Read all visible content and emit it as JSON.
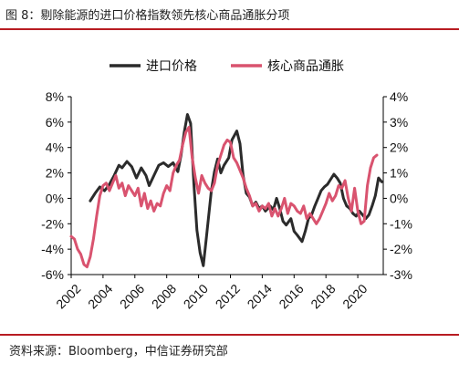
{
  "title": "图 8：剔除能源的进口价格指数领先核心商品通胀分项",
  "source": "资料来源：Bloomberg，中信证券研究部",
  "colors": {
    "import": "#2b2b2b",
    "core": "#d9536f",
    "rule": "#b81c22"
  },
  "chart_data": {
    "type": "line",
    "legend_position": "top",
    "grid": false,
    "xlim": [
      2002,
      2021.6
    ],
    "x_ticks": [
      2002,
      2004,
      2006,
      2008,
      2010,
      2012,
      2014,
      2016,
      2018,
      2020
    ],
    "x_tick_labels": [
      "2002",
      "2004",
      "2006",
      "2008",
      "2010",
      "2012",
      "2014",
      "2016",
      "2018",
      "2020"
    ],
    "y_left": {
      "range": [
        -6,
        8
      ],
      "ticks": [
        -6,
        -4,
        -2,
        0,
        2,
        4,
        6,
        8
      ],
      "tick_labels": [
        "-6%",
        "-4%",
        "-2%",
        "0%",
        "2%",
        "4%",
        "6%",
        "8%"
      ]
    },
    "y_right": {
      "range": [
        -3,
        4
      ],
      "ticks": [
        -3,
        -2,
        -1,
        0,
        1,
        2,
        3,
        4
      ],
      "tick_labels": [
        "-3%",
        "-2%",
        "-1%",
        "0%",
        "1%",
        "2%",
        "3%",
        "4%"
      ]
    },
    "series": [
      {
        "name": "进口价格",
        "axis": "left",
        "points": [
          [
            2003.2,
            -0.2
          ],
          [
            2003.5,
            0.4
          ],
          [
            2003.8,
            0.9
          ],
          [
            2004.1,
            0.6
          ],
          [
            2004.4,
            1.1
          ],
          [
            2004.7,
            1.8
          ],
          [
            2005.0,
            2.6
          ],
          [
            2005.2,
            2.4
          ],
          [
            2005.5,
            2.9
          ],
          [
            2005.8,
            2.5
          ],
          [
            2006.1,
            1.6
          ],
          [
            2006.4,
            2.4
          ],
          [
            2006.7,
            1.8
          ],
          [
            2006.9,
            1.0
          ],
          [
            2007.2,
            1.8
          ],
          [
            2007.5,
            2.6
          ],
          [
            2007.8,
            2.8
          ],
          [
            2008.1,
            2.5
          ],
          [
            2008.4,
            2.8
          ],
          [
            2008.7,
            2.1
          ],
          [
            2008.9,
            3.4
          ],
          [
            2009.1,
            5.2
          ],
          [
            2009.3,
            6.6
          ],
          [
            2009.5,
            5.9
          ],
          [
            2009.7,
            1.2
          ],
          [
            2009.9,
            -2.5
          ],
          [
            2010.1,
            -4.3
          ],
          [
            2010.3,
            -5.3
          ],
          [
            2010.5,
            -3.0
          ],
          [
            2010.8,
            0.6
          ],
          [
            2011.0,
            2.1
          ],
          [
            2011.2,
            3.1
          ],
          [
            2011.4,
            2.0
          ],
          [
            2011.6,
            2.6
          ],
          [
            2011.9,
            3.2
          ],
          [
            2012.1,
            4.6
          ],
          [
            2012.4,
            5.3
          ],
          [
            2012.6,
            4.3
          ],
          [
            2012.8,
            1.8
          ],
          [
            2013.0,
            0.4
          ],
          [
            2013.2,
            0.1
          ],
          [
            2013.4,
            -0.6
          ],
          [
            2013.6,
            -0.3
          ],
          [
            2013.8,
            -0.8
          ],
          [
            2014.0,
            -0.6
          ],
          [
            2014.2,
            -1.0
          ],
          [
            2014.5,
            -0.6
          ],
          [
            2014.7,
            -0.9
          ],
          [
            2014.9,
            0.0
          ],
          [
            2015.1,
            -0.8
          ],
          [
            2015.3,
            -1.8
          ],
          [
            2015.5,
            -2.1
          ],
          [
            2015.8,
            -1.6
          ],
          [
            2016.0,
            -2.6
          ],
          [
            2016.2,
            -2.9
          ],
          [
            2016.5,
            -3.4
          ],
          [
            2016.7,
            -2.6
          ],
          [
            2016.9,
            -1.6
          ],
          [
            2017.1,
            -1.3
          ],
          [
            2017.3,
            -0.6
          ],
          [
            2017.5,
            0.0
          ],
          [
            2017.7,
            0.6
          ],
          [
            2017.9,
            0.9
          ],
          [
            2018.1,
            1.1
          ],
          [
            2018.3,
            1.5
          ],
          [
            2018.5,
            1.9
          ],
          [
            2018.7,
            1.6
          ],
          [
            2018.9,
            1.2
          ],
          [
            2019.1,
            0.0
          ],
          [
            2019.3,
            -0.6
          ],
          [
            2019.5,
            -0.8
          ],
          [
            2019.7,
            -1.2
          ],
          [
            2019.9,
            -1.4
          ],
          [
            2020.1,
            -1.0
          ],
          [
            2020.3,
            -1.3
          ],
          [
            2020.5,
            -1.6
          ],
          [
            2020.7,
            -1.3
          ],
          [
            2020.9,
            -0.6
          ],
          [
            2021.1,
            0.2
          ],
          [
            2021.3,
            1.6
          ],
          [
            2021.5,
            1.3
          ]
        ]
      },
      {
        "name": "核心商品通胀",
        "axis": "right",
        "points": [
          [
            2002.0,
            -1.5
          ],
          [
            2002.2,
            -1.6
          ],
          [
            2002.4,
            -2.0
          ],
          [
            2002.6,
            -2.2
          ],
          [
            2002.8,
            -2.6
          ],
          [
            2003.0,
            -2.7
          ],
          [
            2003.2,
            -2.3
          ],
          [
            2003.4,
            -1.6
          ],
          [
            2003.6,
            -0.7
          ],
          [
            2003.8,
            0.1
          ],
          [
            2004.0,
            0.5
          ],
          [
            2004.2,
            0.6
          ],
          [
            2004.4,
            0.3
          ],
          [
            2004.6,
            0.6
          ],
          [
            2004.8,
            0.9
          ],
          [
            2005.0,
            0.4
          ],
          [
            2005.2,
            0.6
          ],
          [
            2005.4,
            0.1
          ],
          [
            2005.6,
            0.5
          ],
          [
            2005.8,
            0.3
          ],
          [
            2006.0,
            0.1
          ],
          [
            2006.2,
            0.4
          ],
          [
            2006.4,
            -0.3
          ],
          [
            2006.6,
            0.2
          ],
          [
            2006.8,
            -0.4
          ],
          [
            2007.0,
            -0.1
          ],
          [
            2007.2,
            -0.5
          ],
          [
            2007.4,
            -0.2
          ],
          [
            2007.6,
            -0.3
          ],
          [
            2007.8,
            0.2
          ],
          [
            2008.0,
            0.5
          ],
          [
            2008.2,
            0.3
          ],
          [
            2008.4,
            1.0
          ],
          [
            2008.6,
            1.3
          ],
          [
            2008.8,
            1.5
          ],
          [
            2009.0,
            2.1
          ],
          [
            2009.2,
            2.6
          ],
          [
            2009.4,
            2.8
          ],
          [
            2009.6,
            1.6
          ],
          [
            2009.8,
            0.8
          ],
          [
            2010.0,
            0.2
          ],
          [
            2010.2,
            0.9
          ],
          [
            2010.4,
            0.6
          ],
          [
            2010.6,
            0.4
          ],
          [
            2010.8,
            0.3
          ],
          [
            2011.0,
            0.6
          ],
          [
            2011.2,
            1.3
          ],
          [
            2011.4,
            1.7
          ],
          [
            2011.6,
            2.1
          ],
          [
            2011.8,
            2.3
          ],
          [
            2012.0,
            2.2
          ],
          [
            2012.2,
            1.6
          ],
          [
            2012.4,
            1.4
          ],
          [
            2012.6,
            1.1
          ],
          [
            2012.8,
            0.8
          ],
          [
            2013.0,
            0.4
          ],
          [
            2013.2,
            0.1
          ],
          [
            2013.4,
            -0.3
          ],
          [
            2013.6,
            -0.2
          ],
          [
            2013.8,
            -0.5
          ],
          [
            2014.0,
            -0.3
          ],
          [
            2014.2,
            -0.4
          ],
          [
            2014.4,
            -0.2
          ],
          [
            2014.6,
            -0.7
          ],
          [
            2014.8,
            -0.4
          ],
          [
            2015.0,
            -0.7
          ],
          [
            2015.2,
            -0.4
          ],
          [
            2015.4,
            0.0
          ],
          [
            2015.6,
            -0.6
          ],
          [
            2015.8,
            -0.2
          ],
          [
            2016.0,
            -0.3
          ],
          [
            2016.2,
            -0.5
          ],
          [
            2016.4,
            -0.6
          ],
          [
            2016.6,
            -0.3
          ],
          [
            2016.8,
            -0.8
          ],
          [
            2017.0,
            -0.6
          ],
          [
            2017.2,
            -0.8
          ],
          [
            2017.4,
            -1.0
          ],
          [
            2017.6,
            -0.8
          ],
          [
            2017.8,
            -0.5
          ],
          [
            2018.0,
            -0.2
          ],
          [
            2018.2,
            0.2
          ],
          [
            2018.4,
            -0.1
          ],
          [
            2018.6,
            0.1
          ],
          [
            2018.8,
            0.5
          ],
          [
            2019.0,
            0.4
          ],
          [
            2019.2,
            0.7
          ],
          [
            2019.4,
            0.0
          ],
          [
            2019.6,
            -0.5
          ],
          [
            2019.8,
            0.4
          ],
          [
            2020.0,
            -0.5
          ],
          [
            2020.2,
            -1.0
          ],
          [
            2020.4,
            -0.9
          ],
          [
            2020.6,
            0.5
          ],
          [
            2020.8,
            1.2
          ],
          [
            2021.0,
            1.6
          ],
          [
            2021.2,
            1.7
          ]
        ]
      }
    ]
  }
}
